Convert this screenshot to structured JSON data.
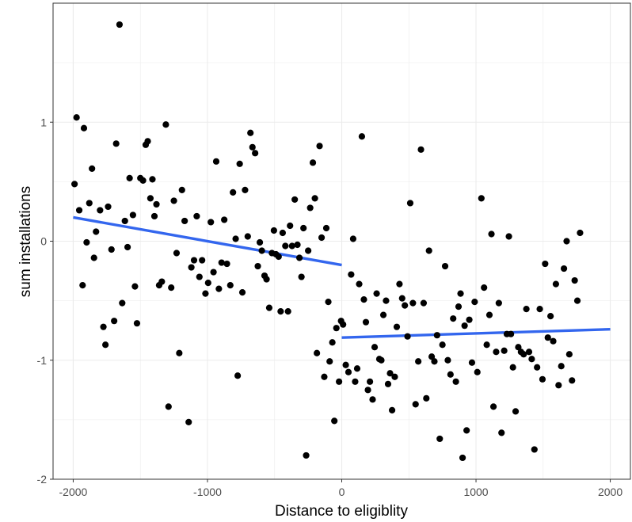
{
  "chart_data": {
    "type": "scatter",
    "xlabel": "Distance to eligiblity",
    "ylabel": "sum installations",
    "xlim": [
      -2150,
      2150
    ],
    "ylim": [
      -2.0,
      2.0
    ],
    "xticks": [
      -2000,
      -1000,
      0,
      1000,
      2000
    ],
    "xtick_labels": [
      "-2000",
      "-1000",
      "0",
      "1000",
      "2000"
    ],
    "yticks": [
      -2,
      -1,
      0,
      1
    ],
    "ytick_labels": [
      "-2",
      "-1",
      "0",
      "1"
    ],
    "grid": true,
    "colors": {
      "points": "#000000",
      "fit_line": "#3366ee",
      "grid": "#ebebeb",
      "panel_border": "#333333"
    },
    "points": [
      [
        -1990,
        0.48
      ],
      [
        -1975,
        1.04
      ],
      [
        -1955,
        0.26
      ],
      [
        -1930,
        -0.37
      ],
      [
        -1920,
        0.95
      ],
      [
        -1900,
        -0.01
      ],
      [
        -1880,
        0.32
      ],
      [
        -1860,
        0.61
      ],
      [
        -1845,
        -0.14
      ],
      [
        -1830,
        0.08
      ],
      [
        -1800,
        0.26
      ],
      [
        -1775,
        -0.72
      ],
      [
        -1760,
        -0.87
      ],
      [
        -1740,
        0.29
      ],
      [
        -1715,
        -0.07
      ],
      [
        -1695,
        -0.67
      ],
      [
        -1680,
        0.82
      ],
      [
        -1655,
        1.82
      ],
      [
        -1635,
        -0.52
      ],
      [
        -1615,
        0.17
      ],
      [
        -1595,
        -0.05
      ],
      [
        -1580,
        0.53
      ],
      [
        -1555,
        0.22
      ],
      [
        -1540,
        -0.38
      ],
      [
        -1525,
        -0.69
      ],
      [
        -1500,
        0.53
      ],
      [
        -1480,
        0.51
      ],
      [
        -1460,
        0.81
      ],
      [
        -1445,
        0.84
      ],
      [
        -1425,
        0.36
      ],
      [
        -1410,
        0.52
      ],
      [
        -1395,
        0.21
      ],
      [
        -1380,
        0.31
      ],
      [
        -1360,
        -0.37
      ],
      [
        -1340,
        -0.34
      ],
      [
        -1310,
        0.98
      ],
      [
        -1290,
        -1.39
      ],
      [
        -1270,
        -0.39
      ],
      [
        -1250,
        0.34
      ],
      [
        -1230,
        -0.1
      ],
      [
        -1210,
        -0.94
      ],
      [
        -1190,
        0.43
      ],
      [
        -1170,
        0.17
      ],
      [
        -1140,
        -1.52
      ],
      [
        -1120,
        -0.22
      ],
      [
        -1100,
        -0.16
      ],
      [
        -1080,
        0.21
      ],
      [
        -1060,
        -0.3
      ],
      [
        -1040,
        -0.16
      ],
      [
        -1015,
        -0.44
      ],
      [
        -995,
        -0.35
      ],
      [
        -975,
        0.16
      ],
      [
        -955,
        -0.26
      ],
      [
        -935,
        0.67
      ],
      [
        -915,
        -0.4
      ],
      [
        -895,
        -0.18
      ],
      [
        -875,
        0.18
      ],
      [
        -855,
        -0.19
      ],
      [
        -830,
        -0.37
      ],
      [
        -810,
        0.41
      ],
      [
        -790,
        0.02
      ],
      [
        -775,
        -1.13
      ],
      [
        -760,
        0.65
      ],
      [
        -740,
        -0.43
      ],
      [
        -720,
        0.43
      ],
      [
        -700,
        0.04
      ],
      [
        -680,
        0.91
      ],
      [
        -665,
        0.79
      ],
      [
        -645,
        0.74
      ],
      [
        -625,
        -0.21
      ],
      [
        -610,
        -0.01
      ],
      [
        -595,
        -0.08
      ],
      [
        -575,
        -0.29
      ],
      [
        -560,
        -0.32
      ],
      [
        -540,
        -0.56
      ],
      [
        -520,
        -0.1
      ],
      [
        -505,
        0.09
      ],
      [
        -490,
        -0.11
      ],
      [
        -470,
        -0.13
      ],
      [
        -455,
        -0.59
      ],
      [
        -440,
        0.07
      ],
      [
        -420,
        -0.04
      ],
      [
        -400,
        -0.59
      ],
      [
        -385,
        0.13
      ],
      [
        -370,
        -0.04
      ],
      [
        -350,
        0.35
      ],
      [
        -330,
        -0.03
      ],
      [
        -315,
        -0.14
      ],
      [
        -300,
        -0.3
      ],
      [
        -285,
        0.11
      ],
      [
        -265,
        -1.8
      ],
      [
        -250,
        -0.08
      ],
      [
        -235,
        0.28
      ],
      [
        -215,
        0.66
      ],
      [
        -200,
        0.36
      ],
      [
        -185,
        -0.94
      ],
      [
        -165,
        0.8
      ],
      [
        -150,
        0.03
      ],
      [
        -130,
        -1.14
      ],
      [
        -115,
        0.11
      ],
      [
        -100,
        -0.51
      ],
      [
        -90,
        -1.01
      ],
      [
        -70,
        -0.85
      ],
      [
        -55,
        -1.51
      ],
      [
        -40,
        -0.73
      ],
      [
        -20,
        -1.18
      ],
      [
        -5,
        -0.67
      ],
      [
        10,
        -0.7
      ],
      [
        30,
        -1.04
      ],
      [
        50,
        -1.1
      ],
      [
        70,
        -0.28
      ],
      [
        85,
        0.02
      ],
      [
        100,
        -1.18
      ],
      [
        115,
        -1.07
      ],
      [
        130,
        -0.36
      ],
      [
        150,
        0.88
      ],
      [
        165,
        -0.49
      ],
      [
        180,
        -0.68
      ],
      [
        195,
        -1.25
      ],
      [
        210,
        -1.18
      ],
      [
        230,
        -1.33
      ],
      [
        245,
        -0.89
      ],
      [
        260,
        -0.44
      ],
      [
        280,
        -0.99
      ],
      [
        295,
        -1.0
      ],
      [
        310,
        -0.62
      ],
      [
        330,
        -0.5
      ],
      [
        345,
        -1.2
      ],
      [
        360,
        -1.11
      ],
      [
        375,
        -1.42
      ],
      [
        395,
        -1.14
      ],
      [
        410,
        -0.72
      ],
      [
        430,
        -0.36
      ],
      [
        450,
        -0.48
      ],
      [
        470,
        -0.54
      ],
      [
        490,
        -0.8
      ],
      [
        510,
        0.32
      ],
      [
        530,
        -0.52
      ],
      [
        550,
        -1.37
      ],
      [
        570,
        -1.01
      ],
      [
        590,
        0.77
      ],
      [
        610,
        -0.52
      ],
      [
        630,
        -1.32
      ],
      [
        650,
        -0.08
      ],
      [
        670,
        -0.97
      ],
      [
        690,
        -1.01
      ],
      [
        710,
        -0.79
      ],
      [
        730,
        -1.66
      ],
      [
        750,
        -0.87
      ],
      [
        770,
        -0.21
      ],
      [
        790,
        -1.0
      ],
      [
        810,
        -1.12
      ],
      [
        830,
        -0.65
      ],
      [
        850,
        -1.18
      ],
      [
        870,
        -0.55
      ],
      [
        885,
        -0.44
      ],
      [
        900,
        -1.82
      ],
      [
        915,
        -0.71
      ],
      [
        930,
        -1.59
      ],
      [
        950,
        -0.66
      ],
      [
        970,
        -1.02
      ],
      [
        990,
        -0.51
      ],
      [
        1010,
        -1.1
      ],
      [
        1040,
        0.36
      ],
      [
        1060,
        -0.39
      ],
      [
        1080,
        -0.87
      ],
      [
        1100,
        -0.62
      ],
      [
        1115,
        0.06
      ],
      [
        1130,
        -1.39
      ],
      [
        1150,
        -0.93
      ],
      [
        1170,
        -0.52
      ],
      [
        1190,
        -1.61
      ],
      [
        1210,
        -0.92
      ],
      [
        1230,
        -0.78
      ],
      [
        1245,
        0.04
      ],
      [
        1260,
        -0.78
      ],
      [
        1275,
        -1.06
      ],
      [
        1295,
        -1.43
      ],
      [
        1315,
        -0.89
      ],
      [
        1335,
        -0.93
      ],
      [
        1355,
        -0.95
      ],
      [
        1375,
        -0.57
      ],
      [
        1395,
        -0.93
      ],
      [
        1415,
        -0.99
      ],
      [
        1435,
        -1.75
      ],
      [
        1455,
        -1.06
      ],
      [
        1475,
        -0.57
      ],
      [
        1495,
        -1.16
      ],
      [
        1515,
        -0.19
      ],
      [
        1535,
        -0.81
      ],
      [
        1555,
        -0.63
      ],
      [
        1575,
        -0.84
      ],
      [
        1595,
        -0.36
      ],
      [
        1615,
        -1.21
      ],
      [
        1635,
        -1.05
      ],
      [
        1655,
        -0.23
      ],
      [
        1675,
        0.0
      ],
      [
        1695,
        -0.95
      ],
      [
        1715,
        -1.17
      ],
      [
        1735,
        -0.33
      ],
      [
        1755,
        -0.5
      ],
      [
        1775,
        0.07
      ]
    ],
    "fit_lines": [
      {
        "x": [
          -2000,
          0
        ],
        "y": [
          0.2,
          -0.2
        ]
      },
      {
        "x": [
          0,
          2000
        ],
        "y": [
          -0.81,
          -0.74
        ]
      }
    ]
  }
}
